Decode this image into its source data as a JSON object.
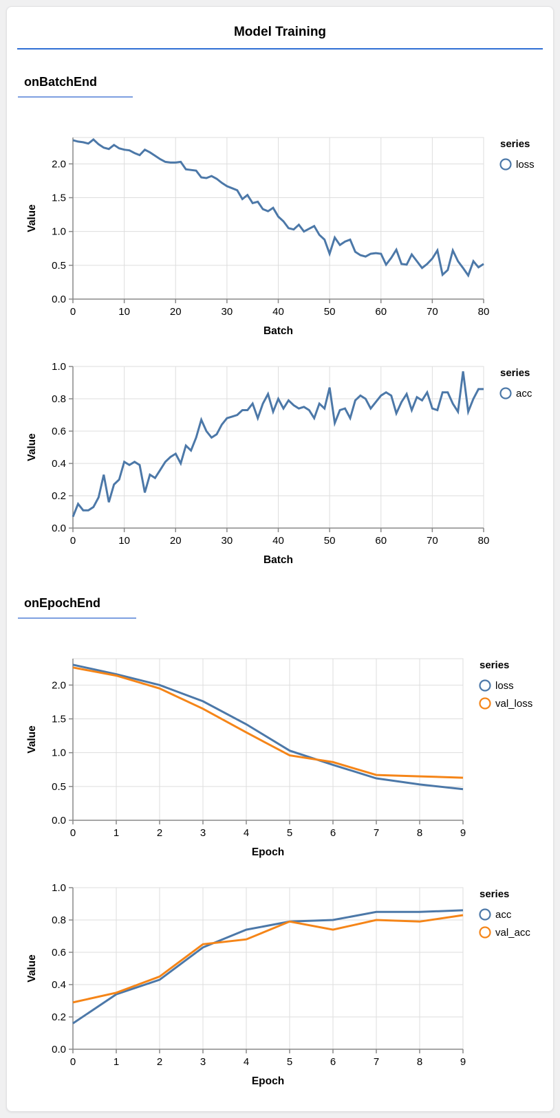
{
  "page": {
    "title": "Model Training"
  },
  "sections": [
    {
      "heading": "onBatchEnd"
    },
    {
      "heading": "onEpochEnd"
    }
  ],
  "colors": {
    "series_blue": "#4c78a8",
    "series_orange": "#f58518",
    "title_underline": "#2f6fd4",
    "section_underline": "#7d9fe0",
    "grid": "#dddddd",
    "axis_domain": "#888888",
    "text": "#000000",
    "card_background": "#ffffff",
    "page_background": "#f0f0f1"
  },
  "chart_data": [
    {
      "type": "line",
      "title": "",
      "xlabel": "Batch",
      "ylabel": "Value",
      "legend_title": "series",
      "legend_position": "right",
      "grid": true,
      "xlim": [
        0,
        80
      ],
      "ylim": [
        0,
        2.39
      ],
      "xticks": [
        0,
        10,
        20,
        30,
        40,
        50,
        60,
        70,
        80
      ],
      "yticks": [
        0,
        0.5,
        1.0,
        1.5,
        2.0
      ],
      "ytick_decimals": 1,
      "x": [
        0,
        1,
        2,
        3,
        4,
        5,
        6,
        7,
        8,
        9,
        10,
        11,
        12,
        13,
        14,
        15,
        16,
        17,
        18,
        19,
        20,
        21,
        22,
        23,
        24,
        25,
        26,
        27,
        28,
        29,
        30,
        31,
        32,
        33,
        34,
        35,
        36,
        37,
        38,
        39,
        40,
        41,
        42,
        43,
        44,
        45,
        46,
        47,
        48,
        49,
        50,
        51,
        52,
        53,
        54,
        55,
        56,
        57,
        58,
        59,
        60,
        61,
        62,
        63,
        64,
        65,
        66,
        67,
        68,
        69,
        70,
        71,
        72,
        73,
        74,
        75,
        76,
        77,
        78,
        79,
        80
      ],
      "series": [
        {
          "name": "loss",
          "color": "#4c78a8",
          "values": [
            2.35,
            2.33,
            2.32,
            2.3,
            2.36,
            2.29,
            2.24,
            2.22,
            2.28,
            2.23,
            2.21,
            2.2,
            2.16,
            2.13,
            2.21,
            2.17,
            2.12,
            2.07,
            2.03,
            2.02,
            2.02,
            2.03,
            1.92,
            1.91,
            1.9,
            1.8,
            1.79,
            1.82,
            1.78,
            1.72,
            1.67,
            1.64,
            1.61,
            1.48,
            1.54,
            1.42,
            1.44,
            1.33,
            1.3,
            1.35,
            1.22,
            1.15,
            1.05,
            1.03,
            1.1,
            1.0,
            1.04,
            1.08,
            0.95,
            0.88,
            0.67,
            0.91,
            0.8,
            0.85,
            0.88,
            0.7,
            0.65,
            0.63,
            0.67,
            0.68,
            0.67,
            0.51,
            0.61,
            0.73,
            0.52,
            0.51,
            0.66,
            0.56,
            0.46,
            0.52,
            0.6,
            0.72,
            0.36,
            0.43,
            0.72,
            0.56,
            0.46,
            0.35,
            0.56,
            0.47,
            0.52
          ]
        }
      ]
    },
    {
      "type": "line",
      "title": "",
      "xlabel": "Batch",
      "ylabel": "Value",
      "legend_title": "series",
      "legend_position": "right",
      "grid": true,
      "xlim": [
        0,
        80
      ],
      "ylim": [
        0,
        1.0
      ],
      "xticks": [
        0,
        10,
        20,
        30,
        40,
        50,
        60,
        70,
        80
      ],
      "yticks": [
        0,
        0.2,
        0.4,
        0.6,
        0.8,
        1.0
      ],
      "ytick_decimals": 1,
      "x": [
        0,
        1,
        2,
        3,
        4,
        5,
        6,
        7,
        8,
        9,
        10,
        11,
        12,
        13,
        14,
        15,
        16,
        17,
        18,
        19,
        20,
        21,
        22,
        23,
        24,
        25,
        26,
        27,
        28,
        29,
        30,
        31,
        32,
        33,
        34,
        35,
        36,
        37,
        38,
        39,
        40,
        41,
        42,
        43,
        44,
        45,
        46,
        47,
        48,
        49,
        50,
        51,
        52,
        53,
        54,
        55,
        56,
        57,
        58,
        59,
        60,
        61,
        62,
        63,
        64,
        65,
        66,
        67,
        68,
        69,
        70,
        71,
        72,
        73,
        74,
        75,
        76,
        77,
        78,
        79,
        80
      ],
      "series": [
        {
          "name": "acc",
          "color": "#4c78a8",
          "values": [
            0.07,
            0.15,
            0.11,
            0.11,
            0.13,
            0.19,
            0.33,
            0.16,
            0.27,
            0.3,
            0.41,
            0.39,
            0.41,
            0.39,
            0.22,
            0.33,
            0.31,
            0.36,
            0.41,
            0.44,
            0.46,
            0.4,
            0.51,
            0.48,
            0.56,
            0.67,
            0.6,
            0.56,
            0.58,
            0.64,
            0.68,
            0.69,
            0.7,
            0.73,
            0.73,
            0.77,
            0.68,
            0.77,
            0.83,
            0.72,
            0.8,
            0.74,
            0.79,
            0.76,
            0.74,
            0.75,
            0.73,
            0.68,
            0.77,
            0.74,
            0.87,
            0.65,
            0.73,
            0.74,
            0.68,
            0.79,
            0.82,
            0.8,
            0.74,
            0.78,
            0.82,
            0.84,
            0.82,
            0.71,
            0.78,
            0.83,
            0.73,
            0.81,
            0.79,
            0.84,
            0.74,
            0.73,
            0.84,
            0.84,
            0.77,
            0.72,
            0.97,
            0.72,
            0.8,
            0.86,
            0.86
          ]
        }
      ]
    },
    {
      "type": "line",
      "title": "",
      "xlabel": "Epoch",
      "ylabel": "Value",
      "legend_title": "series",
      "legend_position": "right",
      "grid": true,
      "xlim": [
        0,
        9
      ],
      "ylim": [
        0,
        2.39
      ],
      "xticks": [
        0,
        1,
        2,
        3,
        4,
        5,
        6,
        7,
        8,
        9
      ],
      "yticks": [
        0,
        0.5,
        1.0,
        1.5,
        2.0
      ],
      "ytick_decimals": 1,
      "x": [
        0,
        1,
        2,
        3,
        4,
        5,
        6,
        7,
        8,
        9
      ],
      "series": [
        {
          "name": "loss",
          "color": "#4c78a8",
          "values": [
            2.3,
            2.16,
            2.0,
            1.76,
            1.42,
            1.03,
            0.82,
            0.62,
            0.53,
            0.46
          ]
        },
        {
          "name": "val_loss",
          "color": "#f58518",
          "values": [
            2.26,
            2.14,
            1.95,
            1.65,
            1.3,
            0.96,
            0.86,
            0.67,
            0.65,
            0.63
          ]
        }
      ]
    },
    {
      "type": "line",
      "title": "",
      "xlabel": "Epoch",
      "ylabel": "Value",
      "legend_title": "series",
      "legend_position": "right",
      "grid": true,
      "xlim": [
        0,
        9
      ],
      "ylim": [
        0,
        1.0
      ],
      "xticks": [
        0,
        1,
        2,
        3,
        4,
        5,
        6,
        7,
        8,
        9
      ],
      "yticks": [
        0,
        0.2,
        0.4,
        0.6,
        0.8,
        1.0
      ],
      "ytick_decimals": 1,
      "x": [
        0,
        1,
        2,
        3,
        4,
        5,
        6,
        7,
        8,
        9
      ],
      "series": [
        {
          "name": "acc",
          "color": "#4c78a8",
          "values": [
            0.16,
            0.34,
            0.43,
            0.63,
            0.74,
            0.79,
            0.8,
            0.85,
            0.85,
            0.86
          ]
        },
        {
          "name": "val_acc",
          "color": "#f58518",
          "values": [
            0.29,
            0.35,
            0.45,
            0.65,
            0.68,
            0.79,
            0.74,
            0.8,
            0.79,
            0.83
          ]
        }
      ]
    }
  ]
}
